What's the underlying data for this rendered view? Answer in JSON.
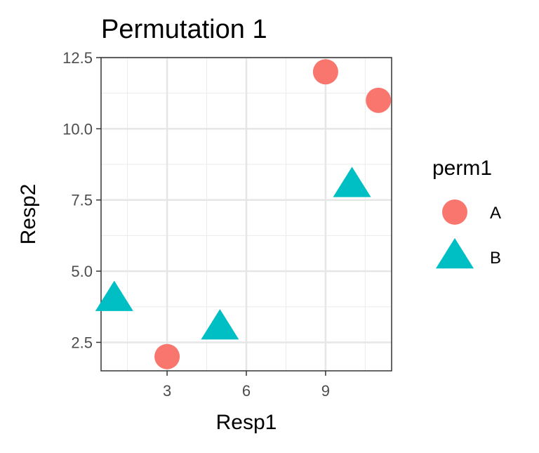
{
  "chart_data": {
    "type": "scatter",
    "title": "Permutation 1",
    "xlabel": "Resp1",
    "ylabel": "Resp2",
    "xlim": [
      0.5,
      11.5
    ],
    "ylim": [
      1.5,
      12.5
    ],
    "x_ticks": [
      3,
      6,
      9
    ],
    "x_tick_labels": [
      "3",
      "6",
      "9"
    ],
    "y_ticks": [
      2.5,
      5.0,
      7.5,
      10.0,
      12.5
    ],
    "y_tick_labels": [
      "2.5",
      "5.0",
      "7.5",
      "10.0",
      "12.5"
    ],
    "grid": true,
    "legend": {
      "title": "perm1",
      "position": "right"
    },
    "series": [
      {
        "name": "A",
        "shape": "circle",
        "color": "#F8766D",
        "points": [
          {
            "x": 9,
            "y": 12
          },
          {
            "x": 11,
            "y": 11
          },
          {
            "x": 3,
            "y": 2
          }
        ]
      },
      {
        "name": "B",
        "shape": "triangle",
        "color": "#00BFC4",
        "points": [
          {
            "x": 10,
            "y": 8
          },
          {
            "x": 1,
            "y": 4
          },
          {
            "x": 5,
            "y": 3
          }
        ]
      }
    ]
  }
}
